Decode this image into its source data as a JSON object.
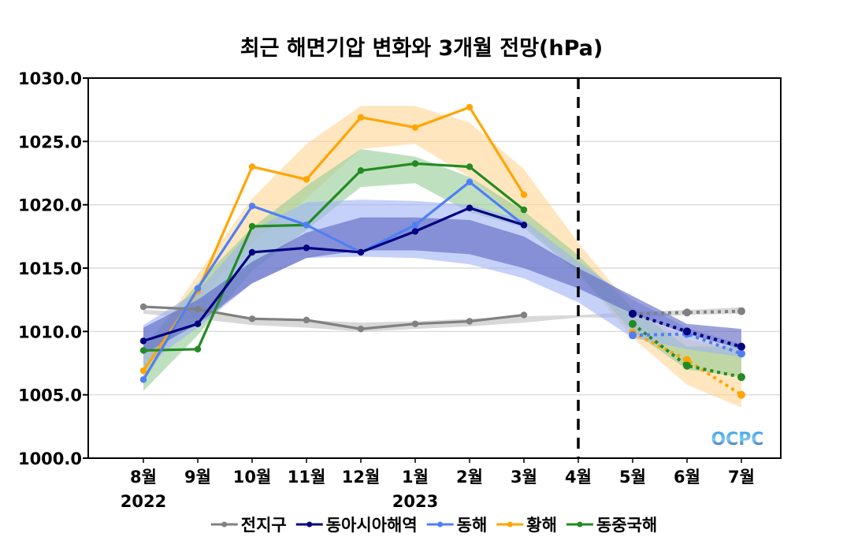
{
  "chart_data": {
    "type": "line",
    "title": "최근 해면기압 변화와 3개월 전망(hPa)",
    "xlabel": "",
    "ylabel": "",
    "ylim": [
      1000,
      1030
    ],
    "yticks": [
      "1000.0",
      "1005.0",
      "1010.0",
      "1015.0",
      "1020.0",
      "1025.0",
      "1030.0"
    ],
    "ytick_values": [
      1000,
      1005,
      1010,
      1015,
      1020,
      1025,
      1030
    ],
    "categories": [
      "8월",
      "9월",
      "10월",
      "11월",
      "12월",
      "1월",
      "2월",
      "3월",
      "4월",
      "5월",
      "6월",
      "7월"
    ],
    "year_labels": [
      {
        "category_index": 0,
        "label": "2022"
      },
      {
        "category_index": 5,
        "label": "2023"
      }
    ],
    "grid": "horizontal",
    "forecast_divider_category_index": 8,
    "observed_range": [
      0,
      7
    ],
    "forecast_range": [
      9,
      11
    ],
    "legend_position": "bottom",
    "series": [
      {
        "name": "전지구",
        "color": "#808080",
        "band_color": "#c8c8c8",
        "observed": [
          1011.95,
          1011.75,
          1011.0,
          1010.9,
          1010.2,
          1010.6,
          1010.8,
          1011.3
        ],
        "forecast": [
          1011.4,
          1011.5,
          1011.6
        ],
        "band_upper": [
          1011.7,
          1011.5,
          1011.1,
          1010.9,
          1010.7,
          1010.8,
          1011.0,
          1011.2,
          1011.3,
          1011.5,
          1011.7,
          1011.9
        ],
        "band_lower": [
          1011.4,
          1011.0,
          1010.5,
          1010.3,
          1010.0,
          1010.2,
          1010.4,
          1010.7,
          1011.1,
          1011.1,
          1011.3,
          1011.4
        ]
      },
      {
        "name": "동아시아해역",
        "color": "#000080",
        "band_color": "#5a64c0",
        "observed": [
          1009.25,
          1010.6,
          1016.25,
          1016.6,
          1016.25,
          1017.9,
          1019.75,
          1018.4
        ],
        "forecast": [
          1011.4,
          1010.0,
          1008.8
        ],
        "band_upper": [
          1010.3,
          1012.5,
          1015.5,
          1017.8,
          1019.0,
          1019.0,
          1018.8,
          1017.5,
          1015.0,
          1012.8,
          1010.6,
          1010.2
        ],
        "band_lower": [
          1008.2,
          1010.6,
          1013.8,
          1015.8,
          1016.4,
          1016.4,
          1016.1,
          1015.0,
          1013.4,
          1011.4,
          1009.8,
          1008.6
        ]
      },
      {
        "name": "동해",
        "color": "#4f7ff5",
        "band_color": "#9fb2f3",
        "observed": [
          1006.2,
          1013.4,
          1019.9,
          1018.4,
          1016.25,
          1018.4,
          1021.8,
          1018.4
        ],
        "forecast": [
          1009.7,
          1009.8,
          1008.25
        ],
        "band_upper": [
          1010.5,
          1013.2,
          1018.0,
          1020.2,
          1020.4,
          1020.3,
          1020.0,
          1018.8,
          1015.5,
          1012.5,
          1010.3,
          1009.0
        ],
        "band_lower": [
          1007.2,
          1010.3,
          1013.8,
          1015.8,
          1015.9,
          1015.8,
          1015.3,
          1014.2,
          1012.3,
          1009.5,
          1008.6,
          1008.0
        ]
      },
      {
        "name": "황해",
        "color": "#ffa500",
        "band_color": "#ffd28a",
        "observed": [
          1006.9,
          1013.2,
          1023.0,
          1022.0,
          1026.9,
          1026.1,
          1027.7,
          1020.8
        ],
        "forecast": [
          1009.9,
          1007.75,
          1005.0
        ],
        "band_upper": [
          1008.2,
          1014.5,
          1020.5,
          1024.8,
          1027.8,
          1027.8,
          1026.5,
          1022.8,
          1017.0,
          1011.8,
          1009.4,
          1008.6
        ],
        "band_lower": [
          1006.0,
          1012.5,
          1017.0,
          1020.5,
          1024.4,
          1024.8,
          1022.2,
          1018.5,
          1014.6,
          1009.5,
          1005.8,
          1004.0
        ]
      },
      {
        "name": "동중국해",
        "color": "#228b22",
        "band_color": "#95cc95",
        "observed": [
          1008.5,
          1008.6,
          1018.3,
          1018.4,
          1022.7,
          1023.25,
          1023.0,
          1019.6
        ],
        "forecast": [
          1010.6,
          1007.3,
          1006.4
        ],
        "band_upper": [
          1008.8,
          1013.8,
          1018.2,
          1021.5,
          1024.4,
          1023.8,
          1022.2,
          1019.5,
          1016.0,
          1011.8,
          1008.8,
          1008.8
        ],
        "band_lower": [
          1005.3,
          1009.7,
          1014.8,
          1018.0,
          1021.4,
          1021.7,
          1019.4,
          1018.2,
          1014.6,
          1010.0,
          1007.0,
          1006.4
        ]
      }
    ]
  },
  "logo": {
    "text": "OCPC",
    "color_top": "#2e9be0",
    "color_bottom": "#1b3c8c"
  }
}
